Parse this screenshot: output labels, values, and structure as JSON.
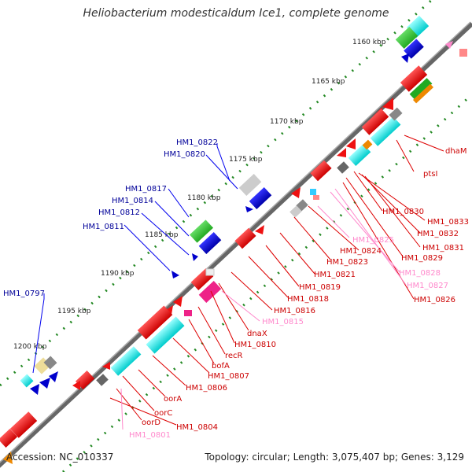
{
  "title": "Heliobacterium modesticaldum Ice1, complete genome",
  "footer": {
    "accession": "Accession: NC_010337",
    "topology": "Topology: circular",
    "length": "Length: 3,075,407 bp",
    "genes": "Genes: 3,129"
  },
  "ruler_labels": [
    "1160 kbp",
    "1165 kbp",
    "1170 kbp",
    "1175 kbp",
    "1180 kbp",
    "1185 kbp",
    "1190 kbp",
    "1195 kbp",
    "1200 kbp"
  ],
  "gene_labels": {
    "blue": [
      "HM1_0822",
      "HM1_0820",
      "HM1_0817",
      "HM1_0814",
      "HM1_0812",
      "HM1_0811",
      "HM1_0797"
    ],
    "red": [
      "dhaM",
      "ptsI",
      "HM1_0830",
      "HM1_0833",
      "HM1_0832",
      "HM1_0831",
      "HM1_0829",
      "HM1_0826",
      "HM1_0824",
      "HM1_0823",
      "HM1_0821",
      "HM1_0819",
      "HM1_0818",
      "HM1_0816",
      "dnaX",
      "HM1_0810",
      "recR",
      "bofA",
      "HM1_0807",
      "HM1_0806",
      "oorA",
      "oorC",
      "oorD",
      "HM1_0804"
    ],
    "pink": [
      "HM1_0825",
      "HM1_0828",
      "HM1_0827",
      "HM1_0815",
      "HM1_0801"
    ]
  },
  "colors": {
    "blue_label": "#000099",
    "red_label": "#cc0000",
    "pink_label": "#ff88cc",
    "backbone": "#666666",
    "ruler": "#228822"
  }
}
